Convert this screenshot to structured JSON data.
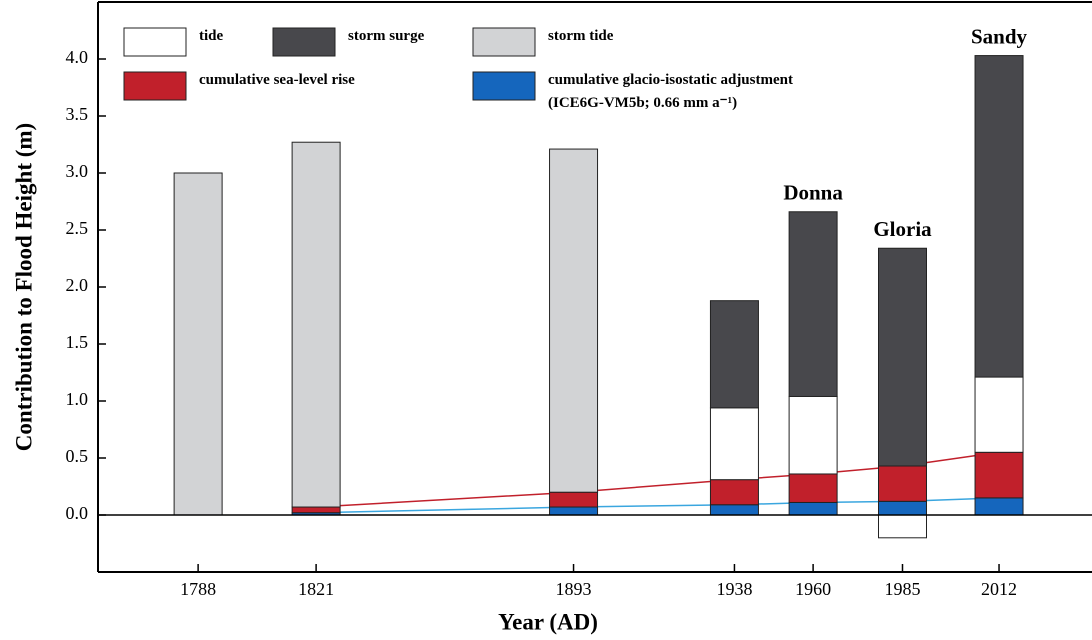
{
  "chart_data": {
    "type": "bar",
    "x_label": "Year (AD)",
    "y_label": "Contribution to Flood Height (m)",
    "x": [
      1788,
      1821,
      1893,
      1938,
      1960,
      1985,
      2012
    ],
    "bar_labels": [
      null,
      null,
      null,
      null,
      "Donna",
      "Gloria",
      "Sandy"
    ],
    "series": [
      {
        "name": "cumulative glacio-isostatic adjustment (ICE6G-VM5b; 0.66 mm a⁻¹)",
        "color": "#1566bd",
        "line_color": "#3aa6df",
        "values": [
          null,
          0.02,
          0.07,
          0.09,
          0.11,
          0.12,
          0.15
        ]
      },
      {
        "name": "cumulative sea-level rise",
        "color": "#c1202b",
        "line_color": "#c1202b",
        "values": [
          null,
          0.05,
          0.13,
          0.22,
          0.25,
          0.31,
          0.4
        ]
      },
      {
        "name": "tide",
        "color": "#ffffff",
        "values": [
          null,
          null,
          null,
          0.63,
          0.68,
          -0.2,
          0.66
        ]
      },
      {
        "name": "storm surge",
        "color": "#48484c",
        "values": [
          null,
          null,
          null,
          0.94,
          1.62,
          1.91,
          2.82
        ]
      },
      {
        "name": "storm tide",
        "color": "#d2d3d5",
        "values": [
          3.0,
          3.2,
          3.01,
          null,
          null,
          null,
          null
        ]
      }
    ],
    "xlim": [
      1760,
      2038
    ],
    "xticks": [
      1788,
      1821,
      1893,
      1938,
      1960,
      1985,
      2012
    ],
    "ylim": [
      -0.5,
      4.5
    ],
    "yticks": [
      {
        "value": 0,
        "label": "0.0"
      },
      {
        "value": 0.5,
        "label": "0.5"
      },
      {
        "value": 1,
        "label": "1.0"
      },
      {
        "value": 1.5,
        "label": "1.5"
      },
      {
        "value": 2,
        "label": "2.0"
      },
      {
        "value": 2.5,
        "label": "2.5"
      },
      {
        "value": 3,
        "label": "3.0"
      },
      {
        "value": 3.5,
        "label": "3.5"
      },
      {
        "value": 4,
        "label": "4.0"
      }
    ]
  }
}
